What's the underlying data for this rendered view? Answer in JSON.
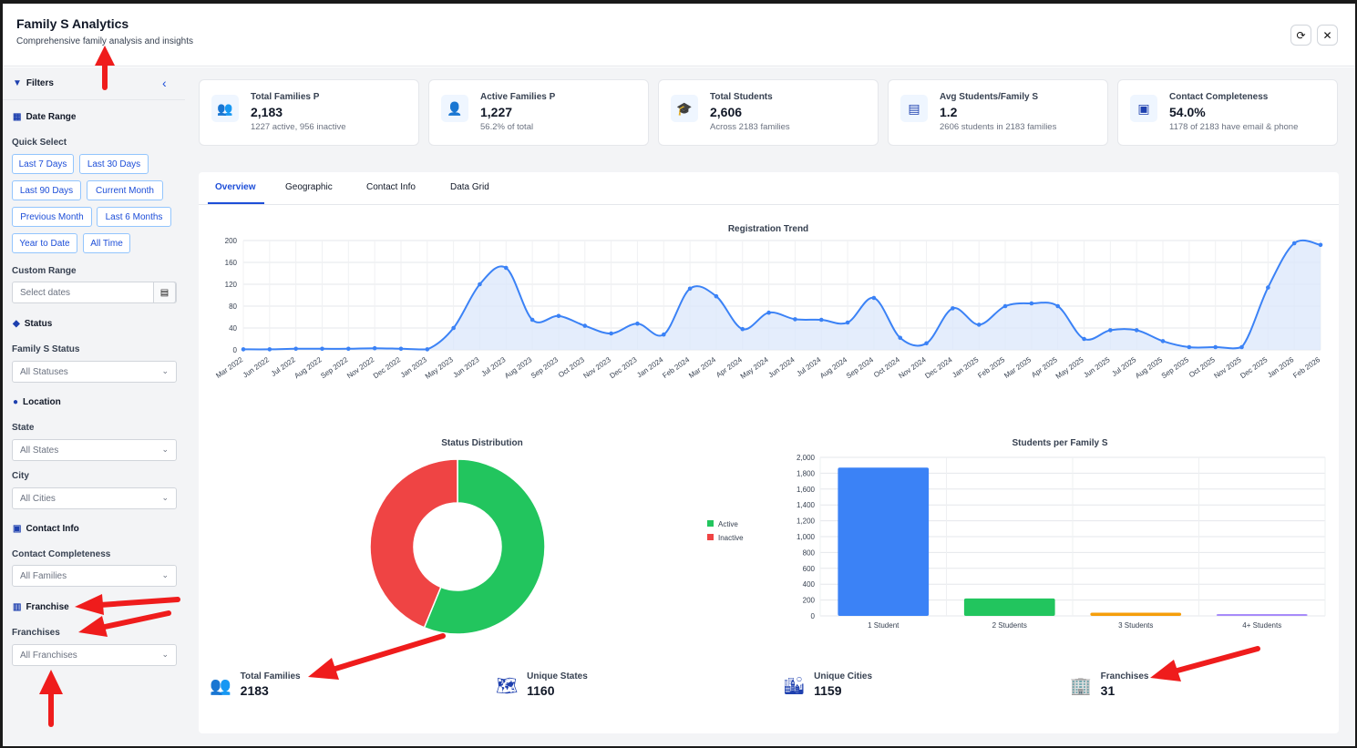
{
  "header": {
    "title": "Family S Analytics",
    "subtitle": "Comprehensive family analysis and insights",
    "refresh_icon": "⟳",
    "close_icon": "✕"
  },
  "sidebar": {
    "title": "Filters",
    "collapse_icon": "‹",
    "date_range": {
      "title": "Date Range",
      "quick_select_label": "Quick Select",
      "quick": [
        "Last 7 Days",
        "Last 30 Days",
        "Last 90 Days",
        "Current Month",
        "Previous Month",
        "Last 6 Months",
        "Year to Date",
        "All Time"
      ],
      "custom_label": "Custom Range",
      "custom_placeholder": "Select dates"
    },
    "status": {
      "title": "Status",
      "label": "Family S Status",
      "value": "All Statuses"
    },
    "location": {
      "title": "Location",
      "state_label": "State",
      "state_value": "All States",
      "city_label": "City",
      "city_value": "All Cities"
    },
    "contact": {
      "title": "Contact Info",
      "label": "Contact Completeness",
      "value": "All Families"
    },
    "franchise": {
      "title": "Franchise",
      "label": "Franchises",
      "value": "All Franchises"
    }
  },
  "cards": [
    {
      "title": "Total Families P",
      "value": "2,183",
      "sub": "1227 active, 956 inactive",
      "icon": "users-icon"
    },
    {
      "title": "Active Families P",
      "value": "1,227",
      "sub": "56.2% of total",
      "icon": "user-check-icon"
    },
    {
      "title": "Total Students",
      "value": "2,606",
      "sub": "Across 2183 families",
      "icon": "graduation-cap-icon"
    },
    {
      "title": "Avg Students/Family S",
      "value": "1.2",
      "sub": "2606 students in 2183 families",
      "icon": "bar-chart-icon"
    },
    {
      "title": "Contact Completeness",
      "value": "54.0%",
      "sub": "1178 of 2183 have email & phone",
      "icon": "address-book-icon"
    }
  ],
  "tabs": [
    "Overview",
    "Geographic",
    "Contact Info",
    "Data Grid"
  ],
  "chart_data": [
    {
      "type": "area",
      "title": "Registration Trend",
      "ylim": [
        0,
        200
      ],
      "yticks": [
        0,
        40,
        80,
        120,
        160,
        200
      ],
      "x": [
        "Mar 2022",
        "Jun 2022",
        "Jul 2022",
        "Aug 2022",
        "Sep 2022",
        "Nov 2022",
        "Dec 2022",
        "Jan 2023",
        "May 2023",
        "Jun 2023",
        "Jul 2023",
        "Aug 2023",
        "Sep 2023",
        "Oct 2023",
        "Nov 2023",
        "Dec 2023",
        "Jan 2024",
        "Feb 2024",
        "Mar 2024",
        "Apr 2024",
        "May 2024",
        "Jun 2024",
        "Jul 2024",
        "Aug 2024",
        "Sep 2024",
        "Oct 2024",
        "Nov 2024",
        "Dec 2024",
        "Jan 2025",
        "Feb 2025",
        "Mar 2025",
        "Apr 2025",
        "May 2025",
        "Jun 2025",
        "Jul 2025",
        "Aug 2025",
        "Sep 2025",
        "Oct 2025",
        "Nov 2025",
        "Dec 2025",
        "Jan 2026",
        "Feb 2026"
      ],
      "values": [
        1,
        1,
        2,
        2,
        2,
        3,
        2,
        1,
        40,
        120,
        150,
        55,
        62,
        44,
        30,
        48,
        28,
        112,
        98,
        38,
        68,
        56,
        55,
        50,
        95,
        22,
        12,
        76,
        46,
        80,
        85,
        80,
        20,
        36,
        36,
        16,
        5,
        5,
        5,
        114,
        195,
        192
      ],
      "color": "#3b82f6",
      "grid": true
    },
    {
      "type": "pie",
      "title": "Status Distribution",
      "labels": [
        "Active",
        "Inactive"
      ],
      "values": [
        1227,
        956
      ],
      "colors": [
        "#22c55e",
        "#ef4444"
      ],
      "legend": "right"
    },
    {
      "type": "bar",
      "title": "Students per Family  S",
      "categories": [
        "1 Student",
        "2 Students",
        "3 Students",
        "4+ Students"
      ],
      "values": [
        1870,
        220,
        40,
        20
      ],
      "colors": [
        "#3b82f6",
        "#22c55e",
        "#f59e0b",
        "#a78bfa"
      ],
      "ylim": [
        0,
        2000
      ],
      "yticks": [
        "0",
        "200",
        "400",
        "600",
        "800",
        "1,000",
        "1,200",
        "1,400",
        "1,600",
        "1,800",
        "2,000"
      ],
      "grid": true
    }
  ],
  "summary": [
    {
      "title": "Total Families",
      "value": "2183",
      "icon": "users-icon"
    },
    {
      "title": "Unique States",
      "value": "1160",
      "icon": "map-icon"
    },
    {
      "title": "Unique Cities",
      "value": "1159",
      "icon": "city-icon"
    },
    {
      "title": "Franchises",
      "value": "31",
      "icon": "building-icon"
    }
  ]
}
